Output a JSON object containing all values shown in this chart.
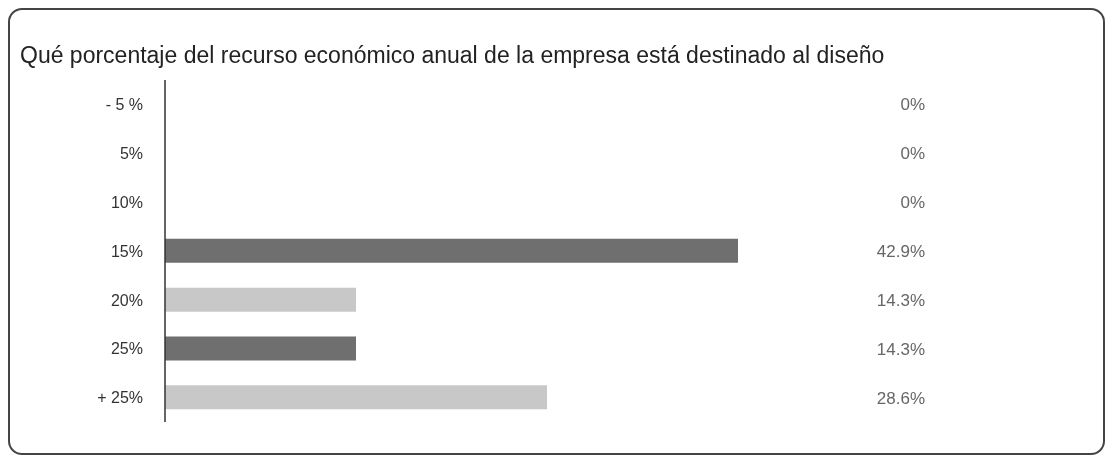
{
  "chart_data": {
    "type": "bar",
    "orientation": "horizontal",
    "title": "Qué porcentaje del recurso económico anual de la empresa está destinado al diseño",
    "categories": [
      "- 5 %",
      "5%",
      "10%",
      "15%",
      "20%",
      "25%",
      "+ 25%"
    ],
    "values": [
      0,
      0,
      0,
      42.9,
      14.3,
      14.3,
      28.6
    ],
    "colors": [
      "#6f6f6f",
      "#c8c8c8",
      "#6f6f6f",
      "#6f6f6f",
      "#c8c8c8",
      "#6f6f6f",
      "#c8c8c8"
    ],
    "value_labels": [
      "0%",
      "0%",
      "0%",
      "42.9%",
      "14.3%",
      "14.3%",
      "28.6%"
    ],
    "grid": false,
    "legend": false
  }
}
